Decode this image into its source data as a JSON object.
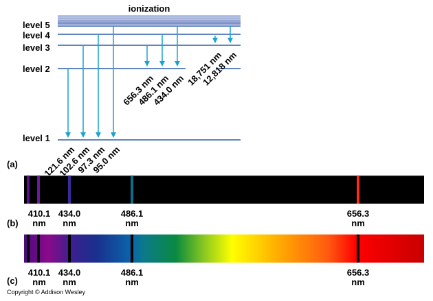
{
  "diagram": {
    "ionization_label": "ionization",
    "levels": [
      {
        "n": 1,
        "label": "level 1"
      },
      {
        "n": 2,
        "label": "level 2"
      },
      {
        "n": 3,
        "label": "level 3"
      },
      {
        "n": 4,
        "label": "level 4"
      },
      {
        "n": 5,
        "label": "level 5"
      }
    ],
    "transitions": [
      {
        "from": 2,
        "to": 1,
        "label": "121.6 nm"
      },
      {
        "from": 3,
        "to": 1,
        "label": "102.6 nm"
      },
      {
        "from": 4,
        "to": 1,
        "label": "97.3 nm"
      },
      {
        "from": 5,
        "to": 1,
        "label": "95.0 nm"
      },
      {
        "from": 3,
        "to": 2,
        "label": "656.3 nm"
      },
      {
        "from": 4,
        "to": 2,
        "label": "486.1 nm"
      },
      {
        "from": 5,
        "to": 2,
        "label": "434.0 nm"
      },
      {
        "from": 4,
        "to": 3,
        "label": "18,751 nm"
      },
      {
        "from": 5,
        "to": 3,
        "label": "12,818 nm"
      }
    ],
    "arrow_color": "#1aa3d1",
    "level_color": "#2a5fa8",
    "panel_labels": {
      "a": "(a)",
      "b": "(b)",
      "c": "(c)"
    },
    "spectrum_lines": [
      {
        "wavelength": 410.1,
        "color": "#6a1a9a",
        "value": "410.1",
        "unit": "nm"
      },
      {
        "wavelength": 434.0,
        "color": "#3b2a9a",
        "value": "434.0",
        "unit": "nm"
      },
      {
        "wavelength": 486.1,
        "color": "#0e6b8e",
        "value": "486.1",
        "unit": "nm"
      },
      {
        "wavelength": 656.3,
        "color": "#ff2a1a",
        "value": "656.3",
        "unit": "nm"
      }
    ],
    "extra_violet_line": {
      "wavelength": 397.0,
      "color": "#5a1090"
    },
    "copyright": "Copyright © Addison Wesley"
  }
}
